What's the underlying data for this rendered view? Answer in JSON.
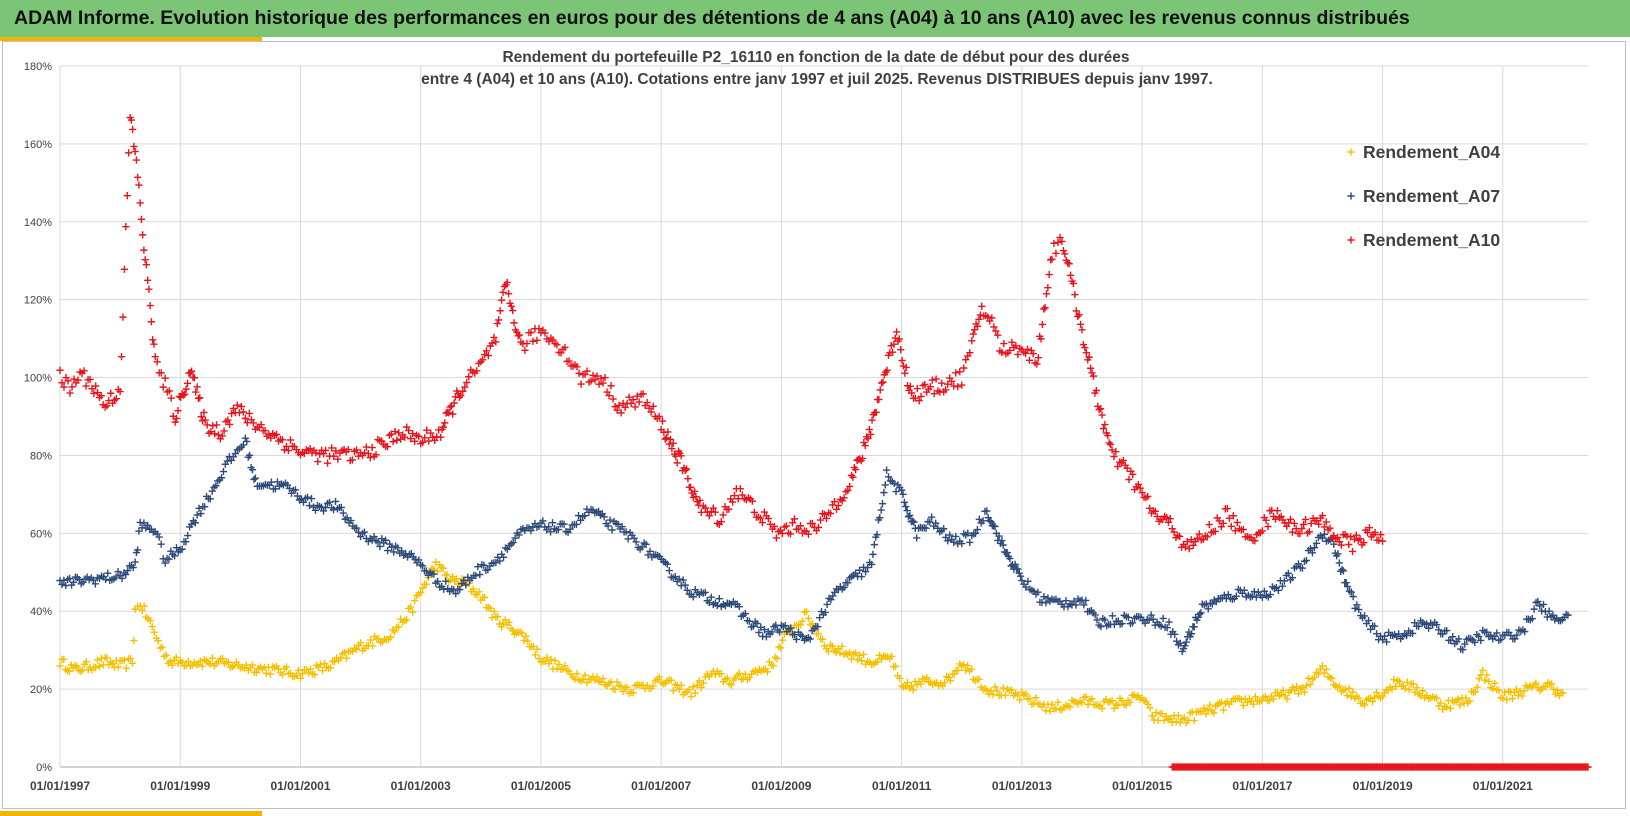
{
  "banner": {
    "title": "ADAM Informe. Evolution historique des performances en euros pour des détentions de 4 ans (A04) à 10 ans (A10) avec les revenus connus distribués"
  },
  "colors": {
    "banner_bg": "#7cc576",
    "accent": "#f4b400",
    "A04": "#f5c000",
    "A07": "#2e4a7a",
    "A10": "#e8141c"
  },
  "chart_data": {
    "type": "scatter",
    "marker": "plus",
    "title_lines": [
      "Rendement du portefeuille P2_16110 en fonction de la date de début pour des durées",
      "entre 4 (A04) et 10 ans (A10). Cotations entre janv 1997 et juil 2025. Revenus DISTRIBUES depuis janv 1997."
    ],
    "xlabel": "",
    "ylabel": "",
    "x_range": [
      "1997-01-01",
      "2022-06-01"
    ],
    "y_range": [
      0,
      180
    ],
    "y_unit": "%",
    "y_ticks": [
      "0%",
      "20%",
      "40%",
      "60%",
      "80%",
      "100%",
      "120%",
      "140%",
      "160%",
      "180%"
    ],
    "x_ticks": [
      "01/01/1997",
      "01/01/1999",
      "01/01/2001",
      "01/01/2003",
      "01/01/2005",
      "01/01/2007",
      "01/01/2009",
      "01/01/2011",
      "01/01/2013",
      "01/01/2015",
      "01/01/2017",
      "01/01/2019",
      "01/01/2021"
    ],
    "grid": true,
    "legend_position": "top-right",
    "series": [
      {
        "name": "Rendement_A04",
        "color": "#f5c000",
        "points": [
          [
            "1997-01-01",
            27
          ],
          [
            "1997-04-01",
            25
          ],
          [
            "1997-07-01",
            26
          ],
          [
            "1997-10-01",
            27
          ],
          [
            "1998-01-01",
            26
          ],
          [
            "1998-03-15",
            27
          ],
          [
            "1998-04-01",
            40
          ],
          [
            "1998-05-01",
            42
          ],
          [
            "1998-07-01",
            37
          ],
          [
            "1998-09-01",
            31
          ],
          [
            "1998-11-01",
            27
          ],
          [
            "1999-01-01",
            27
          ],
          [
            "1999-07-01",
            27
          ],
          [
            "2000-01-01",
            26
          ],
          [
            "2000-07-01",
            25
          ],
          [
            "2001-01-01",
            24
          ],
          [
            "2001-07-01",
            26
          ],
          [
            "2002-01-01",
            31
          ],
          [
            "2002-07-01",
            34
          ],
          [
            "2002-11-01",
            40
          ],
          [
            "2003-01-01",
            45
          ],
          [
            "2003-04-01",
            52
          ],
          [
            "2003-07-01",
            48
          ],
          [
            "2003-10-01",
            47
          ],
          [
            "2004-01-01",
            44
          ],
          [
            "2004-04-01",
            38
          ],
          [
            "2004-07-01",
            36
          ],
          [
            "2004-10-01",
            33
          ],
          [
            "2005-01-01",
            28
          ],
          [
            "2005-07-01",
            24
          ],
          [
            "2006-01-01",
            22
          ],
          [
            "2006-07-01",
            20
          ],
          [
            "2007-01-01",
            22
          ],
          [
            "2007-07-01",
            19
          ],
          [
            "2007-11-01",
            24
          ],
          [
            "2008-03-01",
            22
          ],
          [
            "2008-07-01",
            24
          ],
          [
            "2008-11-01",
            26
          ],
          [
            "2009-02-01",
            34
          ],
          [
            "2009-06-01",
            39
          ],
          [
            "2009-10-01",
            31
          ],
          [
            "2010-03-01",
            29
          ],
          [
            "2010-07-01",
            27
          ],
          [
            "2010-11-01",
            28
          ],
          [
            "2011-01-01",
            20
          ],
          [
            "2011-06-01",
            22
          ],
          [
            "2011-10-01",
            22
          ],
          [
            "2012-01-01",
            27
          ],
          [
            "2012-06-01",
            20
          ],
          [
            "2013-01-01",
            18
          ],
          [
            "2013-07-01",
            15
          ],
          [
            "2014-01-01",
            17
          ],
          [
            "2014-07-01",
            16
          ],
          [
            "2015-01-01",
            18
          ],
          [
            "2015-03-01",
            13
          ],
          [
            "2015-09-01",
            12
          ],
          [
            "2016-01-01",
            14
          ],
          [
            "2016-06-01",
            16
          ],
          [
            "2016-10-01",
            17
          ],
          [
            "2017-04-01",
            18
          ],
          [
            "2017-09-01",
            20
          ],
          [
            "2018-01-01",
            25
          ],
          [
            "2018-04-01",
            21
          ],
          [
            "2018-09-01",
            17
          ],
          [
            "2019-01-01",
            19
          ],
          [
            "2019-04-01",
            22
          ],
          [
            "2019-09-01",
            19
          ],
          [
            "2020-01-01",
            16
          ],
          [
            "2020-06-01",
            17
          ],
          [
            "2020-09-01",
            24
          ],
          [
            "2021-01-01",
            18
          ],
          [
            "2021-06-01",
            20
          ],
          [
            "2021-10-01",
            21
          ],
          [
            "2022-01-01",
            19
          ]
        ]
      },
      {
        "name": "Rendement_A07",
        "color": "#2e4a7a",
        "points": [
          [
            "1997-01-01",
            47
          ],
          [
            "1997-06-01",
            48
          ],
          [
            "1998-01-01",
            49
          ],
          [
            "1998-04-01",
            52
          ],
          [
            "1998-05-01",
            62
          ],
          [
            "1998-08-01",
            61
          ],
          [
            "1998-10-01",
            53
          ],
          [
            "1999-01-01",
            56
          ],
          [
            "1999-04-01",
            64
          ],
          [
            "1999-07-01",
            70
          ],
          [
            "1999-10-01",
            77
          ],
          [
            "2000-02-01",
            84
          ],
          [
            "2000-04-01",
            73
          ],
          [
            "2000-10-01",
            72
          ],
          [
            "2001-04-01",
            67
          ],
          [
            "2001-08-01",
            67
          ],
          [
            "2002-01-01",
            60
          ],
          [
            "2002-06-01",
            57
          ],
          [
            "2002-10-01",
            55
          ],
          [
            "2003-01-01",
            52
          ],
          [
            "2003-04-01",
            48
          ],
          [
            "2003-08-01",
            45
          ],
          [
            "2003-12-01",
            50
          ],
          [
            "2004-04-01",
            53
          ],
          [
            "2004-09-01",
            60
          ],
          [
            "2005-01-01",
            62
          ],
          [
            "2005-06-01",
            61
          ],
          [
            "2005-11-01",
            66
          ],
          [
            "2006-02-01",
            63
          ],
          [
            "2006-06-01",
            60
          ],
          [
            "2006-10-01",
            56
          ],
          [
            "2007-03-01",
            50
          ],
          [
            "2007-07-01",
            45
          ],
          [
            "2007-11-01",
            43
          ],
          [
            "2008-03-01",
            42
          ],
          [
            "2008-07-01",
            37
          ],
          [
            "2008-10-01",
            34
          ],
          [
            "2009-01-01",
            36
          ],
          [
            "2009-04-01",
            34
          ],
          [
            "2009-06-01",
            32
          ],
          [
            "2009-09-01",
            39
          ],
          [
            "2009-12-01",
            45
          ],
          [
            "2010-03-01",
            48
          ],
          [
            "2010-07-01",
            52
          ],
          [
            "2010-10-01",
            75
          ],
          [
            "2011-01-01",
            70
          ],
          [
            "2011-04-01",
            60
          ],
          [
            "2011-07-01",
            63
          ],
          [
            "2011-11-01",
            58
          ],
          [
            "2012-03-01",
            59
          ],
          [
            "2012-06-01",
            66
          ],
          [
            "2012-09-01",
            57
          ],
          [
            "2013-01-01",
            48
          ],
          [
            "2013-05-01",
            43
          ],
          [
            "2013-09-01",
            42
          ],
          [
            "2014-01-01",
            43
          ],
          [
            "2014-04-01",
            37
          ],
          [
            "2014-09-01",
            38
          ],
          [
            "2015-02-01",
            38
          ],
          [
            "2015-06-01",
            37
          ],
          [
            "2015-09-01",
            30
          ],
          [
            "2016-01-01",
            41
          ],
          [
            "2016-05-01",
            43
          ],
          [
            "2016-09-01",
            45
          ],
          [
            "2017-01-01",
            44
          ],
          [
            "2017-05-01",
            47
          ],
          [
            "2017-09-01",
            52
          ],
          [
            "2018-01-01",
            60
          ],
          [
            "2018-03-01",
            58
          ],
          [
            "2018-06-01",
            46
          ],
          [
            "2018-09-01",
            38
          ],
          [
            "2019-01-01",
            33
          ],
          [
            "2019-05-01",
            34
          ],
          [
            "2019-09-01",
            37
          ],
          [
            "2020-01-01",
            35
          ],
          [
            "2020-05-01",
            31
          ],
          [
            "2020-09-01",
            34
          ],
          [
            "2021-01-01",
            33
          ],
          [
            "2021-05-01",
            35
          ],
          [
            "2021-08-01",
            42
          ],
          [
            "2021-11-01",
            38
          ],
          [
            "2022-02-01",
            39
          ]
        ]
      },
      {
        "name": "Rendement_A10",
        "color": "#e8141c",
        "points": [
          [
            "1997-01-01",
            100
          ],
          [
            "1997-03-01",
            97
          ],
          [
            "1997-05-01",
            101
          ],
          [
            "1997-07-01",
            99
          ],
          [
            "1997-10-01",
            93
          ],
          [
            "1998-01-01",
            97
          ],
          [
            "1998-03-01",
            167
          ],
          [
            "1998-04-01",
            158
          ],
          [
            "1998-05-01",
            145
          ],
          [
            "1998-06-01",
            130
          ],
          [
            "1998-07-01",
            119
          ],
          [
            "1998-08-01",
            104
          ],
          [
            "1998-10-01",
            98
          ],
          [
            "1998-12-01",
            90
          ],
          [
            "1999-03-01",
            102
          ],
          [
            "1999-06-01",
            88
          ],
          [
            "1999-09-01",
            86
          ],
          [
            "1999-12-01",
            92
          ],
          [
            "2000-04-01",
            88
          ],
          [
            "2000-09-01",
            84
          ],
          [
            "2001-01-01",
            81
          ],
          [
            "2001-06-01",
            80
          ],
          [
            "2002-01-01",
            80
          ],
          [
            "2002-06-01",
            83
          ],
          [
            "2002-09-01",
            86
          ],
          [
            "2003-01-01",
            84
          ],
          [
            "2003-05-01",
            86
          ],
          [
            "2003-09-01",
            97
          ],
          [
            "2004-01-01",
            103
          ],
          [
            "2004-04-01",
            110
          ],
          [
            "2004-06-01",
            124
          ],
          [
            "2004-09-01",
            108
          ],
          [
            "2005-01-01",
            112
          ],
          [
            "2005-05-01",
            108
          ],
          [
            "2005-09-01",
            100
          ],
          [
            "2006-01-01",
            100
          ],
          [
            "2006-05-01",
            92
          ],
          [
            "2006-09-01",
            95
          ],
          [
            "2007-01-01",
            88
          ],
          [
            "2007-05-01",
            78
          ],
          [
            "2007-09-01",
            66
          ],
          [
            "2008-01-01",
            64
          ],
          [
            "2008-04-01",
            71
          ],
          [
            "2008-08-01",
            66
          ],
          [
            "2008-12-01",
            60
          ],
          [
            "2009-04-01",
            62
          ],
          [
            "2009-08-01",
            61
          ],
          [
            "2009-12-01",
            68
          ],
          [
            "2010-03-01",
            74
          ],
          [
            "2010-06-01",
            83
          ],
          [
            "2010-09-01",
            98
          ],
          [
            "2010-12-01",
            112
          ],
          [
            "2011-03-01",
            95
          ],
          [
            "2011-06-01",
            97
          ],
          [
            "2011-09-01",
            98
          ],
          [
            "2012-01-01",
            100
          ],
          [
            "2012-03-01",
            108
          ],
          [
            "2012-05-01",
            118
          ],
          [
            "2012-07-01",
            114
          ],
          [
            "2012-09-01",
            107
          ],
          [
            "2013-01-01",
            108
          ],
          [
            "2013-04-01",
            104
          ],
          [
            "2013-07-01",
            132
          ],
          [
            "2013-09-01",
            136
          ],
          [
            "2013-11-01",
            124
          ],
          [
            "2014-01-01",
            112
          ],
          [
            "2014-03-01",
            100
          ],
          [
            "2014-05-01",
            90
          ],
          [
            "2014-07-01",
            80
          ],
          [
            "2014-10-01",
            76
          ],
          [
            "2015-01-01",
            70
          ],
          [
            "2015-04-01",
            64
          ],
          [
            "2015-07-01",
            62
          ],
          [
            "2015-10-01",
            56
          ],
          [
            "2016-02-01",
            60
          ],
          [
            "2016-06-01",
            65
          ],
          [
            "2016-10-01",
            58
          ],
          [
            "2017-01-01",
            62
          ],
          [
            "2017-04-01",
            66
          ],
          [
            "2017-07-01",
            61
          ],
          [
            "2017-10-01",
            62
          ],
          [
            "2018-01-01",
            63
          ],
          [
            "2018-04-01",
            59
          ],
          [
            "2018-07-01",
            57
          ],
          [
            "2018-10-01",
            60
          ],
          [
            "2019-01-01",
            58
          ]
        ],
        "zero_segment": {
          "from": "2015-07-01",
          "to": "2022-06-01",
          "value": 0
        }
      }
    ]
  }
}
